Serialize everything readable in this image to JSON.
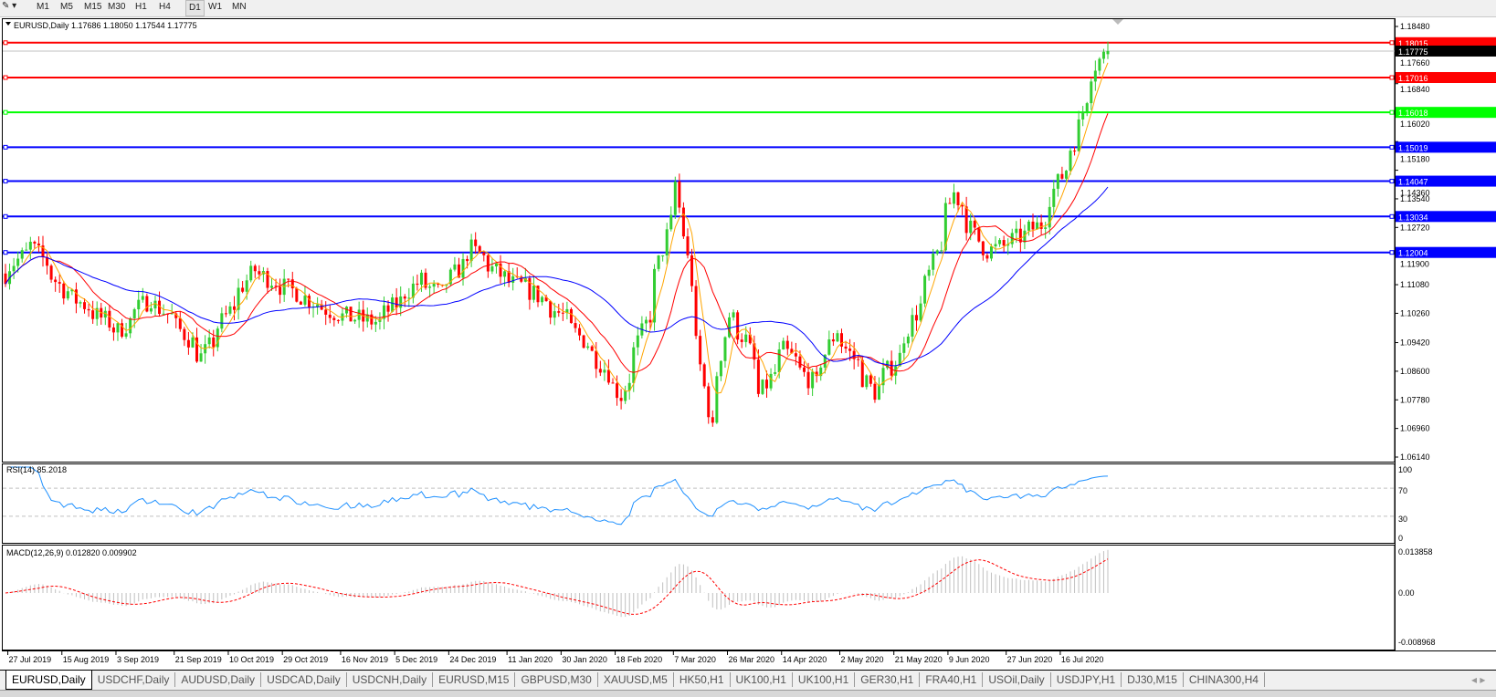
{
  "toolbar": {
    "timeframes": [
      "M1",
      "M5",
      "M15",
      "M30",
      "H1",
      "H4",
      "D1",
      "W1",
      "MN"
    ],
    "active_timeframe": "D1"
  },
  "chart": {
    "header": "EURUSD,Daily  1.17686 1.18050 1.17544 1.17775",
    "current_price": "1.17775",
    "rsi_label": "RSI(14) 85.2018",
    "macd_label": "MACD(12,26,9) 0.012820 0.009902",
    "colors": {
      "bull": "#32cd32",
      "bear": "#ff0000",
      "ma_fast": "#ffa500",
      "ma_mid": "#ff0000",
      "ma_slow": "#0000ff",
      "rsi": "#1e90ff",
      "macd_signal": "#ff0000",
      "macd_hist": "#c0c0c0"
    }
  },
  "chart_data": {
    "type": "candlestick",
    "symbol": "EURUSD",
    "period": "Daily",
    "close_path": [
      [
        "2019-07-26",
        1.114
      ],
      [
        "2019-08-05",
        1.122
      ],
      [
        "2019-08-15",
        1.1095
      ],
      [
        "2019-09-03",
        1.0975
      ],
      [
        "2019-09-13",
        1.107
      ],
      [
        "2019-09-21",
        1.101
      ],
      [
        "2019-10-01",
        1.09
      ],
      [
        "2019-10-18",
        1.115
      ],
      [
        "2019-10-29",
        1.11
      ],
      [
        "2019-11-05",
        1.107
      ],
      [
        "2019-11-16",
        1.102
      ],
      [
        "2019-11-29",
        1.1
      ],
      [
        "2019-12-13",
        1.112
      ],
      [
        "2019-12-20",
        1.108
      ],
      [
        "2019-12-31",
        1.121
      ],
      [
        "2020-01-11",
        1.112
      ],
      [
        "2020-01-20",
        1.109
      ],
      [
        "2020-01-30",
        1.102
      ],
      [
        "2020-02-10",
        1.091
      ],
      [
        "2020-02-19",
        1.079
      ],
      [
        "2020-02-28",
        1.102
      ],
      [
        "2020-03-09",
        1.14
      ],
      [
        "2020-03-12",
        1.118
      ],
      [
        "2020-03-20",
        1.069
      ],
      [
        "2020-03-26",
        1.102
      ],
      [
        "2020-04-01",
        1.095
      ],
      [
        "2020-04-06",
        1.079
      ],
      [
        "2020-04-14",
        1.092
      ],
      [
        "2020-04-24",
        1.082
      ],
      [
        "2020-05-01",
        1.098
      ],
      [
        "2020-05-14",
        1.08
      ],
      [
        "2020-05-22",
        1.09
      ],
      [
        "2020-06-01",
        1.111
      ],
      [
        "2020-06-10",
        1.137
      ],
      [
        "2020-06-20",
        1.12
      ],
      [
        "2020-06-27",
        1.122
      ],
      [
        "2020-07-09",
        1.128
      ],
      [
        "2020-07-16",
        1.142
      ],
      [
        "2020-07-21",
        1.152
      ],
      [
        "2020-07-24",
        1.165
      ],
      [
        "2020-07-28",
        1.174
      ],
      [
        "2020-07-31",
        1.1775
      ]
    ],
    "price_ticks": [
      "1.18480",
      "1.17660",
      "1.16840",
      "1.16020",
      "1.15180",
      "1.14360",
      "1.13540",
      "1.12720",
      "1.11900",
      "1.11080",
      "1.10260",
      "1.09420",
      "1.08600",
      "1.07780",
      "1.06960",
      "1.06140"
    ],
    "horizontal_levels": [
      {
        "price": "1.18015",
        "color": "#ff0000"
      },
      {
        "price": "1.17016",
        "color": "#ff0000"
      },
      {
        "price": "1.16018",
        "color": "#00ff00"
      },
      {
        "price": "1.15019",
        "color": "#0000ff"
      },
      {
        "price": "1.14047",
        "color": "#0000ff"
      },
      {
        "price": "1.13034",
        "color": "#0000ff"
      },
      {
        "price": "1.12004",
        "color": "#0000ff"
      }
    ],
    "rsi_ticks": [
      "100",
      "70",
      "30",
      "0"
    ],
    "macd_ticks": [
      "0.013858",
      "0.00",
      "-0.008968"
    ],
    "date_labels": [
      "27 Jul 2019",
      "15 Aug 2019",
      "3 Sep 2019",
      "21 Sep 2019",
      "10 Oct 2019",
      "29 Oct 2019",
      "16 Nov 2019",
      "5 Dec 2019",
      "24 Dec 2019",
      "11 Jan 2020",
      "30 Jan 2020",
      "18 Feb 2020",
      "7 Mar 2020",
      "26 Mar 2020",
      "14 Apr 2020",
      "2 May 2020",
      "21 May 2020",
      "9 Jun 2020",
      "27 Jun 2020",
      "16 Jul 2020"
    ]
  },
  "tabs": [
    "EURUSD,Daily",
    "USDCHF,Daily",
    "AUDUSD,Daily",
    "USDCAD,Daily",
    "USDCNH,Daily",
    "EURUSD,M15",
    "GBPUSD,M30",
    "XAUUSD,M5",
    "HK50,H1",
    "UK100,H1",
    "UK100,H1",
    "GER30,H1",
    "FRA40,H1",
    "USOil,Daily",
    "USDJPY,H1",
    "DJ30,M15",
    "CHINA300,H4"
  ],
  "active_tab": "EURUSD,Daily"
}
